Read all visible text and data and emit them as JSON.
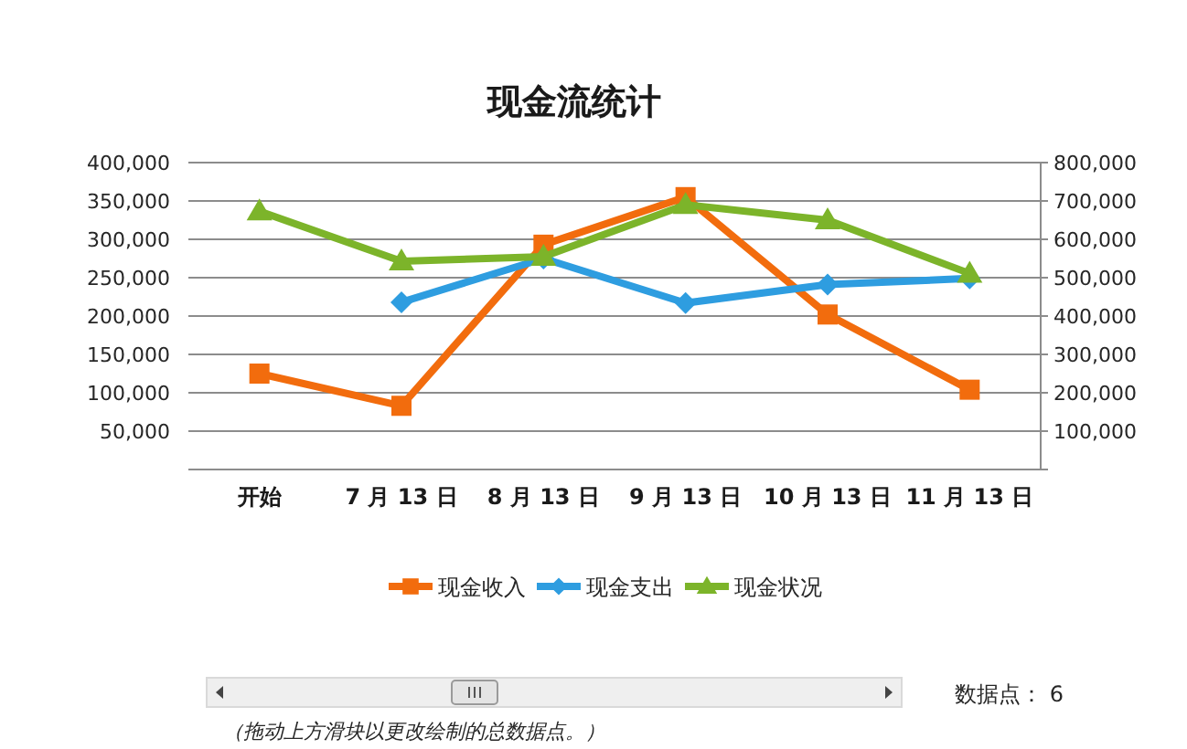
{
  "chart_data": {
    "type": "line",
    "title": "现金流统计",
    "categories": [
      "开始",
      "7 月 13 日",
      "8 月 13 日",
      "9 月 13 日",
      "10 月 13 日",
      "11 月 13 日"
    ],
    "series": [
      {
        "name": "现金收入",
        "color": "#f26c0d",
        "marker": "square",
        "values": [
          125000,
          83000,
          293000,
          355000,
          202000,
          104000
        ]
      },
      {
        "name": "现金支出",
        "color": "#2e9de0",
        "marker": "diamond",
        "values": [
          null,
          218000,
          275000,
          217000,
          241000,
          249000
        ]
      },
      {
        "name": "现金状况",
        "color": "#7cb42a",
        "marker": "triangle",
        "axis": "y2",
        "values": [
          673000,
          543000,
          555000,
          690000,
          650000,
          511000
        ]
      }
    ],
    "ylim": [
      0,
      400000
    ],
    "yticks": [
      {
        "value": 0,
        "label": null
      },
      {
        "value": 50000,
        "label": "50,000"
      },
      {
        "value": 100000,
        "label": "100,000"
      },
      {
        "value": 150000,
        "label": "150,000"
      },
      {
        "value": 200000,
        "label": "200,000"
      },
      {
        "value": 250000,
        "label": "250,000"
      },
      {
        "value": 300000,
        "label": "300,000"
      },
      {
        "value": 350000,
        "label": "350,000"
      },
      {
        "value": 400000,
        "label": "400,000"
      }
    ],
    "y2lim": [
      0,
      800000
    ],
    "y2ticks": [
      {
        "value": 0,
        "label": null
      },
      {
        "value": 100000,
        "label": "100,000"
      },
      {
        "value": 200000,
        "label": "200,000"
      },
      {
        "value": 300000,
        "label": "300,000"
      },
      {
        "value": 400000,
        "label": "400,000"
      },
      {
        "value": 500000,
        "label": "500,000"
      },
      {
        "value": 600000,
        "label": "600,000"
      },
      {
        "value": 700000,
        "label": "700,000"
      },
      {
        "value": 800000,
        "label": "800,000"
      }
    ],
    "grid": "y",
    "legend": "bottom",
    "annotations": [
      "数据点： 6",
      "（拖动上方滑块以更改绘制的总数据点。）"
    ]
  }
}
